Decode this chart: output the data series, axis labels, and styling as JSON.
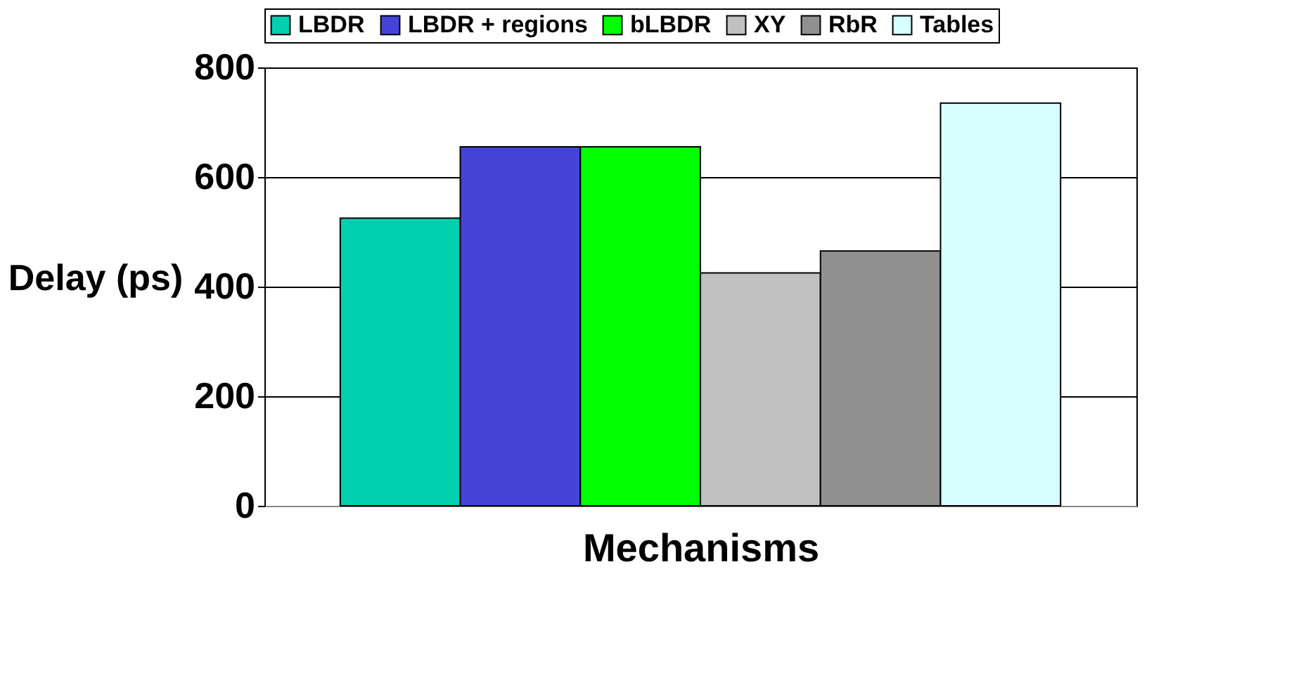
{
  "chart_data": {
    "type": "bar",
    "categories": [
      null
    ],
    "xlabel": "Mechanisms",
    "ylabel": "Delay (ps)",
    "series": [
      {
        "name": "LBDR",
        "color": "#00d0b0",
        "values": [
          525
        ]
      },
      {
        "name": "LBDR + regions",
        "color": "#4444d8",
        "values": [
          655
        ]
      },
      {
        "name": "bLBDR",
        "color": "#00ff00",
        "values": [
          655
        ]
      },
      {
        "name": "XY",
        "color": "#c0c0c0",
        "values": [
          425
        ]
      },
      {
        "name": "RbR",
        "color": "#909090",
        "values": [
          465
        ]
      },
      {
        "name": "Tables",
        "color": "#d8ffff",
        "values": [
          735
        ]
      }
    ],
    "ylim": [
      0,
      800
    ],
    "yticks": [
      0,
      200,
      400,
      600,
      800
    ],
    "grid": "y",
    "legend": "top"
  }
}
